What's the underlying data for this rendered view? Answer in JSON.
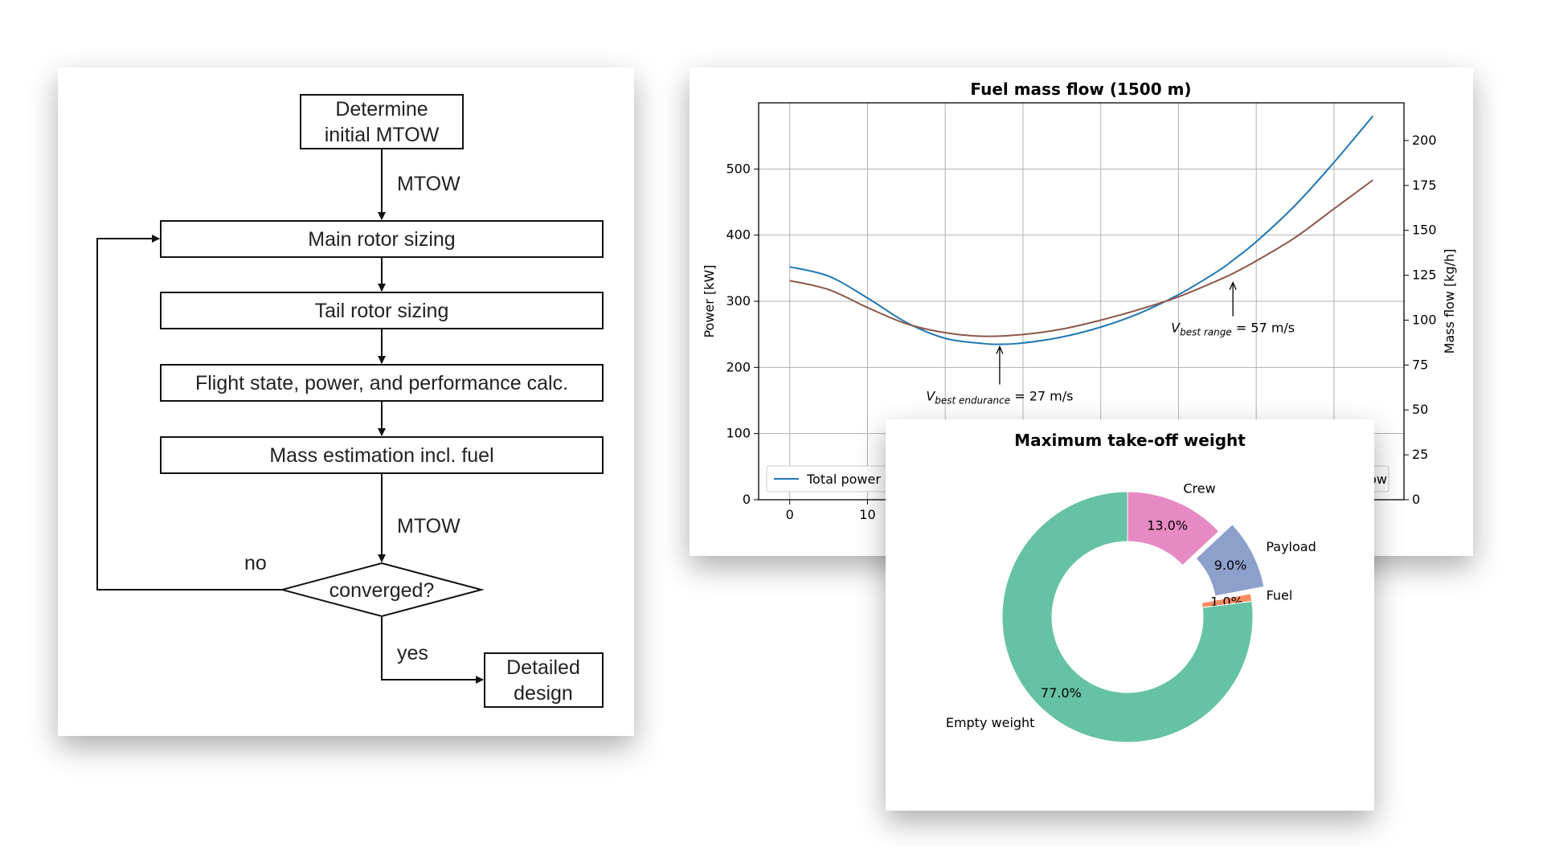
{
  "flowchart": {
    "box_mtow_line1": "Determine",
    "box_mtow_line2": "initial MTOW",
    "edge_mtow_top": "MTOW",
    "box_main_rotor": "Main rotor sizing",
    "box_tail_rotor": "Tail rotor sizing",
    "box_flight_state": "Flight state, power, and performance calc.",
    "box_mass": "Mass estimation incl. fuel",
    "edge_mtow_bottom": "MTOW",
    "decision": "converged?",
    "edge_no": "no",
    "edge_yes": "yes",
    "box_detailed_line1": "Detailed",
    "box_detailed_line2": "design"
  },
  "chart_data": [
    {
      "type": "line",
      "title": "Fuel mass flow (1500 m)",
      "ylabel": "Power [kW]",
      "y2label": "Mass flow [kg/h]",
      "x_ticks": [
        "0",
        "10"
      ],
      "y_ticks": [
        "0",
        "100",
        "200",
        "300",
        "400",
        "500"
      ],
      "y2_ticks": [
        "0",
        "25",
        "50",
        "75",
        "100",
        "125",
        "150",
        "175",
        "200"
      ],
      "xlim": [
        -4,
        79
      ],
      "ylim": [
        0,
        600
      ],
      "y2lim": [
        0,
        221
      ],
      "grid": true,
      "legend": "lower-left",
      "legend_visible_left": "Total power",
      "legend_visible_right": "ow",
      "series": [
        {
          "name": "Total power",
          "axis": "left",
          "color": "#1f77b4",
          "x": [
            0,
            5,
            10,
            15,
            20,
            25,
            27,
            30,
            35,
            40,
            45,
            50,
            55,
            57,
            60,
            65,
            70,
            75
          ],
          "y": [
            352,
            338,
            305,
            268,
            244,
            236,
            235,
            237,
            246,
            261,
            282,
            310,
            345,
            362,
            390,
            445,
            510,
            580
          ]
        },
        {
          "name": "Mass flow",
          "axis": "right",
          "color": "#8c564b",
          "x": [
            0,
            5,
            10,
            15,
            20,
            25,
            30,
            35,
            40,
            45,
            50,
            55,
            57,
            60,
            65,
            70,
            75
          ],
          "y": [
            122,
            117,
            107,
            98,
            93,
            91,
            92,
            95,
            100,
            106,
            113,
            122,
            126,
            133,
            146,
            162,
            178
          ]
        }
      ],
      "annotations": [
        {
          "main": "V",
          "sub": "best endurance",
          "rest": " = 27 m/s",
          "x": 27,
          "y": 235
        },
        {
          "main": "V",
          "sub": "best range",
          "rest": " = 57 m/s",
          "x": 57,
          "y": 332
        }
      ]
    },
    {
      "type": "pie",
      "title": "Maximum take-off weight",
      "donut": true,
      "slices": [
        {
          "label": "Crew",
          "value": 13.0,
          "pct_label": "13.0%",
          "color": "#e78ac3",
          "explode": 0.0
        },
        {
          "label": "Payload",
          "value": 9.0,
          "pct_label": "9.0%",
          "color": "#8da0cb",
          "explode": 0.12
        },
        {
          "label": "Fuel",
          "value": 1.0,
          "pct_label": "1.0%",
          "color": "#fc8d62",
          "explode": 0.0
        },
        {
          "label": "Empty weight",
          "value": 77.0,
          "pct_label": "77.0%",
          "color": "#66c2a5",
          "explode": 0.0
        }
      ]
    }
  ]
}
